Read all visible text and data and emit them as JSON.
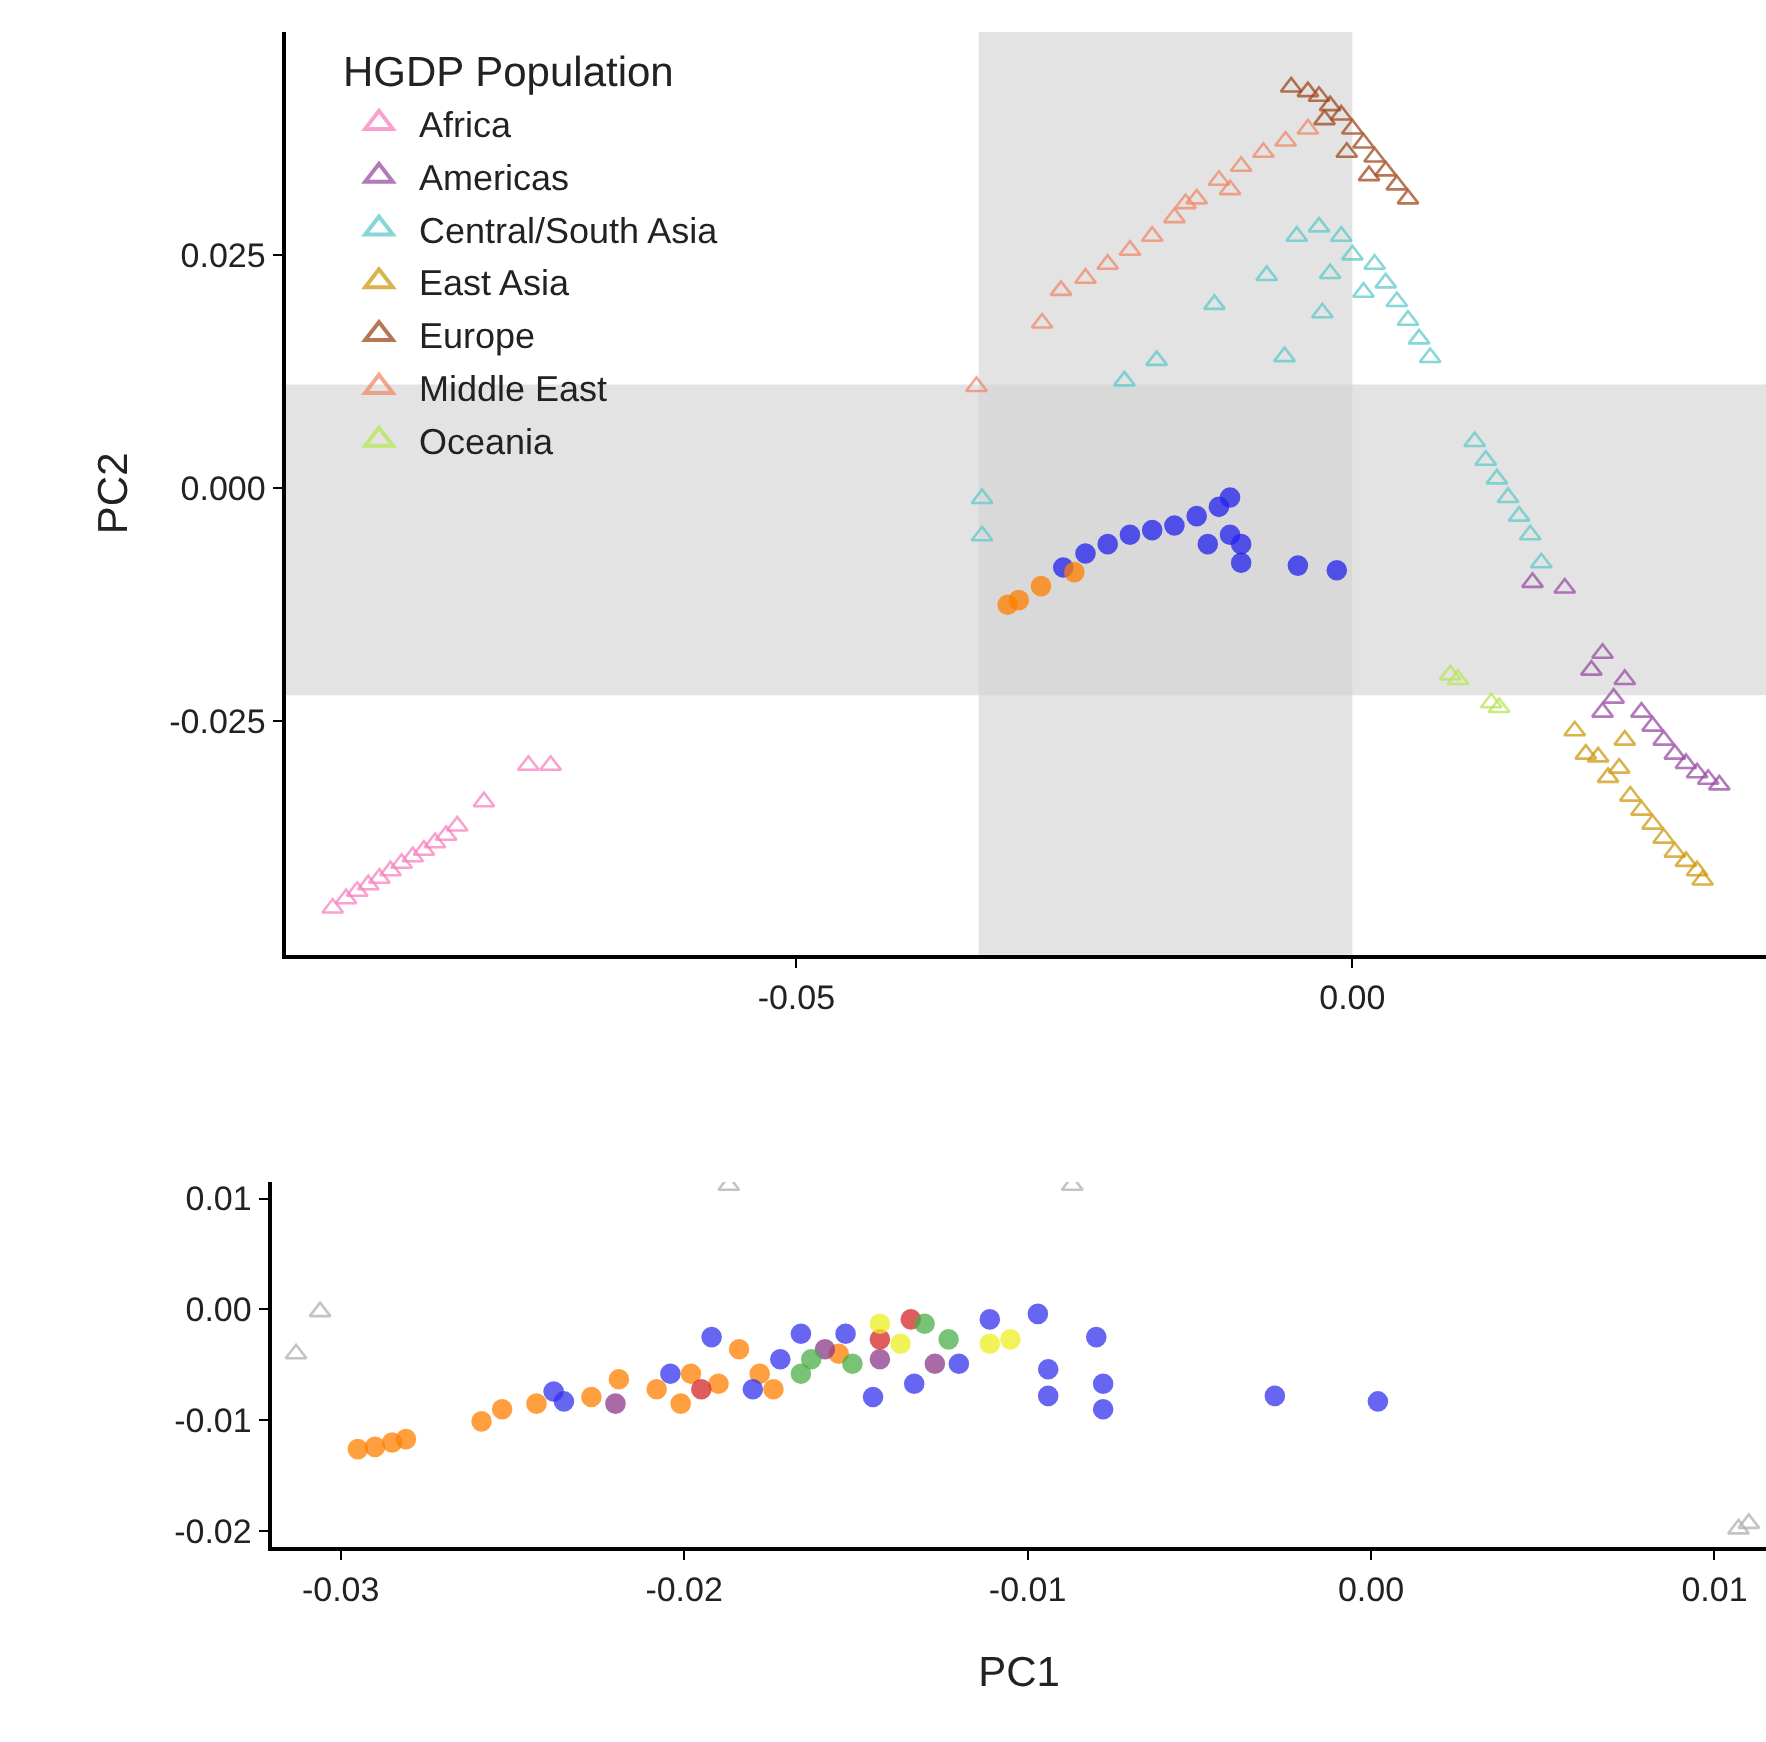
{
  "chart_data": [
    {
      "type": "scatter",
      "ylabel": "PC2",
      "legend_title": "HGDP Population",
      "legend": "top left",
      "grid": false,
      "xlim": [
        -0.0959,
        0.0372
      ],
      "ylim": [
        -0.05,
        0.0489
      ],
      "xticks": [
        -0.05,
        {
          "value": 0,
          "label": "0.00"
        }
      ],
      "yticks": [
        0.025,
        {
          "value": 0,
          "label": "0.000"
        },
        -0.025
      ],
      "bands": [
        {
          "axis": "x",
          "from": -0.0336,
          "to": 0.0,
          "color": "#d4d4d4"
        },
        {
          "axis": "y",
          "from": -0.0222,
          "to": 0.0111,
          "color": "#d4d4d4"
        }
      ],
      "series": [
        {
          "name": "Africa",
          "color": "#f781bf",
          "marker": "triangle",
          "x": [
            -0.0917,
            -0.0905,
            -0.0895,
            -0.0885,
            -0.0875,
            -0.0865,
            -0.0855,
            -0.0845,
            -0.0835,
            -0.0825,
            -0.0815,
            -0.0805,
            -0.0781,
            -0.0741,
            -0.0721
          ],
          "values": [
            -0.045,
            -0.044,
            -0.0432,
            -0.0425,
            -0.0418,
            -0.041,
            -0.0402,
            -0.0395,
            -0.0388,
            -0.038,
            -0.0372,
            -0.0362,
            -0.0336,
            -0.0297,
            -0.0297
          ]
        },
        {
          "name": "Americas",
          "color": "#984ea3",
          "marker": "triangle",
          "x": [
            0.0162,
            0.0191,
            0.0225,
            0.0215,
            0.0235,
            0.0245,
            0.026,
            0.027,
            0.028,
            0.029,
            0.03,
            0.031,
            0.032,
            0.033,
            0.0225
          ],
          "values": [
            -0.0101,
            -0.0107,
            -0.0177,
            -0.0195,
            -0.0225,
            -0.0205,
            -0.024,
            -0.0255,
            -0.027,
            -0.0285,
            -0.0295,
            -0.0305,
            -0.0312,
            -0.0318,
            -0.024
          ]
        },
        {
          "name": "Central/South Asia",
          "color": "#5fc9c9",
          "marker": "triangle",
          "x": [
            -0.005,
            -0.003,
            -0.001,
            0.0,
            0.002,
            0.003,
            0.004,
            0.005,
            0.006,
            0.007,
            -0.002,
            0.001,
            0.011,
            0.012,
            0.013,
            0.014,
            0.015,
            0.016,
            0.017,
            -0.0205,
            -0.0176,
            -0.0124,
            -0.0077,
            -0.0061,
            -0.0027,
            -0.0333,
            -0.0333
          ],
          "values": [
            0.027,
            0.028,
            0.027,
            0.025,
            0.024,
            0.022,
            0.02,
            0.018,
            0.016,
            0.014,
            0.023,
            0.021,
            0.005,
            0.003,
            0.001,
            -0.001,
            -0.003,
            -0.005,
            -0.008,
            0.0115,
            0.0137,
            0.0197,
            0.0228,
            0.0141,
            0.0188,
            -0.0011,
            -0.0051
          ]
        },
        {
          "name": "East Asia",
          "color": "#cc9a10",
          "marker": "triangle",
          "x": [
            0.02,
            0.021,
            0.0221,
            0.023,
            0.024,
            0.025,
            0.026,
            0.027,
            0.028,
            0.029,
            0.03,
            0.031,
            0.0315,
            0.0245
          ],
          "values": [
            -0.026,
            -0.0285,
            -0.0288,
            -0.031,
            -0.03,
            -0.033,
            -0.0345,
            -0.036,
            -0.0375,
            -0.039,
            -0.04,
            -0.041,
            -0.042,
            -0.027
          ]
        },
        {
          "name": "Europe",
          "color": "#9e4a1e",
          "marker": "triangle",
          "x": [
            -0.0055,
            -0.004,
            -0.003,
            -0.002,
            -0.001,
            -0.0025,
            0.0,
            0.001,
            0.002,
            0.003,
            0.004,
            0.005,
            0.0015,
            -0.0005
          ],
          "values": [
            0.043,
            0.0425,
            0.042,
            0.041,
            0.04,
            0.0395,
            0.0385,
            0.037,
            0.0355,
            0.034,
            0.0325,
            0.031,
            0.0335,
            0.036
          ]
        },
        {
          "name": "Middle East",
          "color": "#ef8a6a",
          "marker": "triangle",
          "x": [
            -0.0338,
            -0.0279,
            -0.0262,
            -0.024,
            -0.022,
            -0.02,
            -0.018,
            -0.016,
            -0.014,
            -0.012,
            -0.01,
            -0.008,
            -0.006,
            -0.004,
            -0.015,
            -0.011
          ],
          "values": [
            0.0109,
            0.0177,
            0.0212,
            0.0225,
            0.024,
            0.0255,
            0.027,
            0.029,
            0.031,
            0.033,
            0.0345,
            0.036,
            0.0372,
            0.0385,
            0.0305,
            0.032
          ]
        },
        {
          "name": "Oceania",
          "color": "#b5e655",
          "marker": "triangle",
          "x": [
            0.0088,
            0.0095,
            0.0125,
            0.0132
          ],
          "values": [
            -0.02,
            -0.0205,
            -0.023,
            -0.0235
          ]
        },
        {
          "color": "#2222ee",
          "marker": "circle",
          "x": [
            -0.026,
            -0.024,
            -0.022,
            -0.02,
            -0.018,
            -0.016,
            -0.014,
            -0.012,
            -0.011,
            -0.013,
            -0.011,
            -0.01,
            -0.01,
            -0.0049,
            -0.0014
          ],
          "values": [
            -0.0085,
            -0.007,
            -0.006,
            -0.005,
            -0.0045,
            -0.004,
            -0.003,
            -0.002,
            -0.001,
            -0.006,
            -0.005,
            -0.006,
            -0.008,
            -0.0083,
            -0.0088
          ]
        },
        {
          "color": "#ff7f00",
          "marker": "circle",
          "x": [
            -0.031,
            -0.03,
            -0.028,
            -0.025
          ],
          "values": [
            -0.0125,
            -0.012,
            -0.0105,
            -0.009
          ]
        }
      ]
    },
    {
      "type": "scatter",
      "xlabel": "PC1",
      "grid": false,
      "xlim": [
        -0.032,
        0.0115
      ],
      "ylim": [
        -0.0214,
        0.0115
      ],
      "xticks": [
        -0.03,
        -0.02,
        -0.01,
        {
          "value": 0,
          "label": "0.00"
        },
        0.01
      ],
      "yticks": [
        0.01,
        {
          "value": 0,
          "label": "0.00"
        },
        -0.01,
        -0.02
      ],
      "series": [
        {
          "color": "#b0b0b0",
          "marker": "triangle",
          "x": [
            -0.0306,
            -0.0313,
            0.0107,
            0.011,
            -0.0187,
            -0.0087
          ],
          "values": [
            -0.0002,
            -0.004,
            -0.0198,
            -0.0193,
            0.0112,
            0.0112
          ]
        },
        {
          "color": "#ff7f00",
          "marker": "circle",
          "x": [
            -0.0295,
            -0.029,
            -0.0285,
            -0.0281,
            -0.0259,
            -0.0253,
            -0.0243,
            -0.0227,
            -0.0219,
            -0.0208,
            -0.0198,
            -0.019,
            -0.0184,
            -0.0178,
            -0.0174,
            -0.0155,
            -0.0201
          ],
          "values": [
            -0.0126,
            -0.0124,
            -0.012,
            -0.0117,
            -0.0101,
            -0.009,
            -0.0085,
            -0.0079,
            -0.0063,
            -0.0072,
            -0.0058,
            -0.0067,
            -0.0036,
            -0.0058,
            -0.0072,
            -0.004,
            -0.0085
          ]
        },
        {
          "color": "#3333ee",
          "marker": "circle",
          "x": [
            -0.0238,
            -0.0235,
            -0.0192,
            -0.0166,
            -0.0153,
            -0.0145,
            -0.0133,
            -0.012,
            -0.0111,
            -0.0097,
            -0.0094,
            -0.0094,
            -0.008,
            -0.0078,
            -0.0078,
            -0.0028,
            0.0002,
            -0.0172,
            -0.018,
            -0.0204
          ],
          "values": [
            -0.0074,
            -0.0083,
            -0.0025,
            -0.0022,
            -0.0022,
            -0.0079,
            -0.0067,
            -0.0049,
            -0.0009,
            -0.0004,
            -0.0054,
            -0.0078,
            -0.0025,
            -0.0067,
            -0.009,
            -0.0078,
            -0.0083,
            -0.0045,
            -0.0072,
            -0.0058
          ]
        },
        {
          "color": "#8b3a8b",
          "marker": "circle",
          "x": [
            -0.022,
            -0.0159,
            -0.0143,
            -0.0127
          ],
          "values": [
            -0.0085,
            -0.0036,
            -0.0045,
            -0.0049
          ]
        },
        {
          "color": "#d62728",
          "marker": "circle",
          "x": [
            -0.0134,
            -0.0143,
            -0.0195
          ],
          "values": [
            -0.0009,
            -0.0027,
            -0.0072
          ]
        },
        {
          "color": "#4daf4a",
          "marker": "circle",
          "x": [
            -0.0166,
            -0.0163,
            -0.013,
            -0.0123,
            -0.0151
          ],
          "values": [
            -0.0058,
            -0.0045,
            -0.0013,
            -0.0027,
            -0.0049
          ]
        },
        {
          "color": "#eeee22",
          "marker": "circle",
          "x": [
            -0.0137,
            -0.0105,
            -0.0111,
            -0.0143
          ],
          "values": [
            -0.0031,
            -0.0027,
            -0.0031,
            -0.0013
          ]
        }
      ]
    }
  ]
}
